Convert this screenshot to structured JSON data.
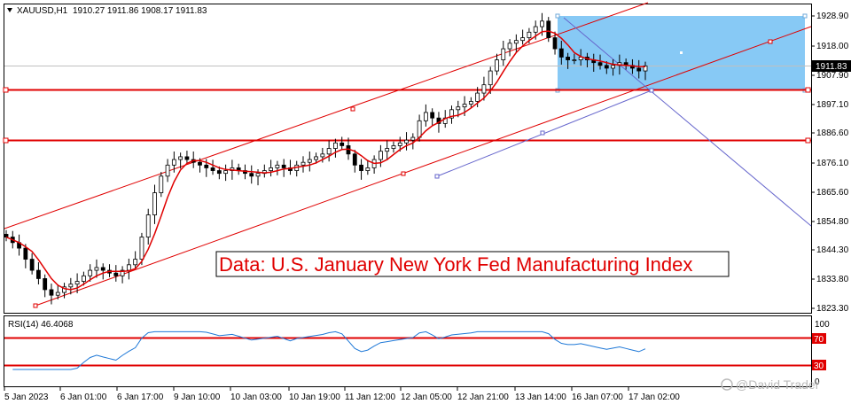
{
  "header": {
    "symbol": "XAUUSD,H1",
    "ohlc": "1910.27 1911.86 1908.17 1911.83",
    "collapse_icon": "triangle-down-icon"
  },
  "price_axis": {
    "labels": [
      "1928.90",
      "1918.00",
      "1907.90",
      "1897.10",
      "1886.60",
      "1876.10",
      "1865.60",
      "1854.80",
      "1844.30",
      "1833.80",
      "1823.30"
    ],
    "current_price": "1911.83"
  },
  "time_axis": {
    "labels": [
      "5 Jan 2023",
      "6 Jan 01:00",
      "6 Jan 17:00",
      "9 Jan 10:00",
      "10 Jan 03:00",
      "10 Jan 19:00",
      "11 Jan 12:00",
      "12 Jan 05:00",
      "12 Jan 21:00",
      "13 Jan 14:00",
      "16 Jan 07:00",
      "17 Jan 02:00"
    ]
  },
  "rsi": {
    "label": "RSI(14) 46.4068",
    "levels": [
      "70",
      "30"
    ],
    "scale_max": "100",
    "scale_min": "0"
  },
  "annotation": {
    "news_text": "Data: U.S. January New York Fed Manufacturing Index"
  },
  "watermark": {
    "text": "@David Trader",
    "icon": "chat-bubble-icon"
  },
  "colors": {
    "bull_candle": "#000000",
    "ma_line": "#e00000",
    "channel": "#e00000",
    "support_lines": "#e00000",
    "trendline": "#6666cc",
    "rectangle": "#87c9f5",
    "rsi_line": "#1e78d7",
    "rsi_levels": "#e00000"
  },
  "chart_data": {
    "type": "candlestick",
    "instrument": "XAUUSD",
    "timeframe": "H1",
    "price_range": [
      1823.3,
      1928.9
    ],
    "horizontal_levels": [
      1901.2,
      1885.4
    ],
    "rsi_period": 14,
    "rsi_value": 46.4068,
    "rsi_levels": [
      70,
      30
    ],
    "close_series": [
      1850,
      1848,
      1846,
      1842,
      1838,
      1835,
      1831,
      1829,
      1830,
      1832,
      1833,
      1834,
      1836,
      1838,
      1839,
      1838,
      1837,
      1836,
      1838,
      1840,
      1842,
      1850,
      1858,
      1866,
      1872,
      1876,
      1878,
      1879,
      1878,
      1877,
      1876,
      1875,
      1874,
      1873,
      1874,
      1875,
      1874,
      1873,
      1872,
      1873,
      1874,
      1875,
      1876,
      1875,
      1874,
      1876,
      1877,
      1878,
      1879,
      1880,
      1882,
      1884,
      1883,
      1880,
      1876,
      1874,
      1875,
      1878,
      1881,
      1882,
      1883,
      1884,
      1885,
      1886,
      1892,
      1895,
      1893,
      1891,
      1893,
      1896,
      1897,
      1898,
      1899,
      1902,
      1905,
      1910,
      1914,
      1918,
      1920,
      1921,
      1922,
      1924,
      1926,
      1928,
      1922,
      1918,
      1915,
      1914,
      1914,
      1915,
      1914,
      1913,
      1912,
      1911,
      1912,
      1913,
      1912,
      1911,
      1910,
      1911.83
    ]
  }
}
